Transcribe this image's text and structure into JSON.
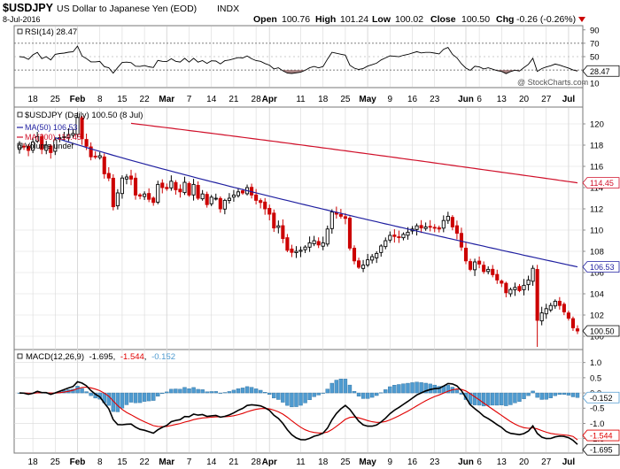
{
  "header": {
    "symbol": "$USDJPY",
    "name": "US Dollar to Japanese Yen (EOD)",
    "exchange": "INDX",
    "date": "8-Jul-2016",
    "open_label": "Open",
    "open": "100.76",
    "high_label": "High",
    "high": "101.24",
    "low_label": "Low",
    "low": "100.02",
    "close_label": "Close",
    "close": "100.50",
    "chg_label": "Chg",
    "chg": "-0.26 (-0.26%)"
  },
  "watermark": "@ StockCharts.com",
  "rsi_panel": {
    "legend": "RSI(14) 28.47",
    "current_label": "28.47",
    "y_ticks": [
      10,
      30,
      50,
      70,
      90
    ],
    "overbought": 70,
    "oversold": 30
  },
  "price_panel": {
    "legend_title": "$USDJPY (Daily) 100.50 (8 Jul)",
    "ma50_legend": "MA(50) 106.53",
    "ma200_legend": "MA(200) 114.45",
    "volume_legend": "Volume undef",
    "ma50_label": "106.53",
    "ma200_label": "114.45",
    "close_label": "100.50",
    "y_ticks": [
      100,
      102,
      104,
      106,
      108,
      110,
      112,
      114,
      116,
      118,
      120
    ],
    "y_range": [
      98.5,
      121.5
    ]
  },
  "macd_panel": {
    "legend_prefix": "MACD(12,26,9)",
    "macd_value": "-1.695",
    "signal_value": "-1.544",
    "hist_value": "-0.152",
    "macd_label": "-1.695",
    "signal_label": "-1.544",
    "hist_label": "-0.152",
    "y_ticks": [
      "1.0",
      "0.5",
      "0.0",
      "-0.5",
      "-1.0",
      "-1.5"
    ],
    "y_tick_values": [
      1.0,
      0.5,
      0.0,
      -0.5,
      -1.0,
      -1.5
    ],
    "y_range": [
      -1.95,
      1.4
    ]
  },
  "x_axis": {
    "labels": [
      {
        "text": "18",
        "idx": 3,
        "bold": false
      },
      {
        "text": "25",
        "idx": 8,
        "bold": false
      },
      {
        "text": "Feb",
        "idx": 13,
        "bold": true
      },
      {
        "text": "8",
        "idx": 18,
        "bold": false
      },
      {
        "text": "15",
        "idx": 23,
        "bold": false
      },
      {
        "text": "22",
        "idx": 28,
        "bold": false
      },
      {
        "text": "Mar",
        "idx": 33,
        "bold": true
      },
      {
        "text": "7",
        "idx": 38,
        "bold": false
      },
      {
        "text": "14",
        "idx": 43,
        "bold": false
      },
      {
        "text": "21",
        "idx": 48,
        "bold": false
      },
      {
        "text": "28",
        "idx": 53,
        "bold": false
      },
      {
        "text": "Apr",
        "idx": 56,
        "bold": true
      },
      {
        "text": "11",
        "idx": 63,
        "bold": false
      },
      {
        "text": "18",
        "idx": 68,
        "bold": false
      },
      {
        "text": "25",
        "idx": 73,
        "bold": false
      },
      {
        "text": "May",
        "idx": 78,
        "bold": true
      },
      {
        "text": "9",
        "idx": 83,
        "bold": false
      },
      {
        "text": "16",
        "idx": 88,
        "bold": false
      },
      {
        "text": "23",
        "idx": 93,
        "bold": false
      },
      {
        "text": "Jun",
        "idx": 100,
        "bold": true
      },
      {
        "text": "6",
        "idx": 103,
        "bold": false
      },
      {
        "text": "13",
        "idx": 108,
        "bold": false
      },
      {
        "text": "20",
        "idx": 113,
        "bold": false
      },
      {
        "text": "27",
        "idx": 118,
        "bold": false
      },
      {
        "text": "Jul",
        "idx": 123,
        "bold": true
      }
    ]
  },
  "colors": {
    "up_candle": "#000000",
    "down_candle": "#cc0000",
    "ma50": "#1f1fa0",
    "ma200": "#d0102a",
    "macd_line": "#000000",
    "signal_line": "#e00000",
    "histogram": "#4f9bd0",
    "grid": "#d9d9d9",
    "rsi_fill": "#8b5a5a",
    "chg_negative": "#cc0000"
  },
  "chart_data": {
    "type": "candlestick",
    "title": "$USDJPY US Dollar to Japanese Yen (EOD) INDX",
    "x_start_label": "18 Jan 2016",
    "x_end_label": "8 Jul 2016",
    "close": [
      118.0,
      117.9,
      117.5,
      118.3,
      118.8,
      117.6,
      118.0,
      117.3,
      118.5,
      118.7,
      118.8,
      119.0,
      119.1,
      120.6,
      118.6,
      117.9,
      116.9,
      116.9,
      117.0,
      115.3,
      114.9,
      112.2,
      113.5,
      114.9,
      115.0,
      114.8,
      113.3,
      113.2,
      113.4,
      112.9,
      112.6,
      114.3,
      114.0,
      113.9,
      114.6,
      113.8,
      113.6,
      114.5,
      113.3,
      114.3,
      113.0,
      113.4,
      112.4,
      113.1,
      113.0,
      112.0,
      112.8,
      113.0,
      113.3,
      113.6,
      113.5,
      114.0,
      113.3,
      112.8,
      112.6,
      112.0,
      111.5,
      110.2,
      110.4,
      109.2,
      108.1,
      107.9,
      108.0,
      108.1,
      108.4,
      108.8,
      109.0,
      108.6,
      108.8,
      110.1,
      111.7,
      111.5,
      111.3,
      111.1,
      108.3,
      107.1,
      106.5,
      106.7,
      107.2,
      107.5,
      107.8,
      108.5,
      109.0,
      109.5,
      109.4,
      109.3,
      109.6,
      109.8,
      110.1,
      110.4,
      110.2,
      110.3,
      110.3,
      110.2,
      110.1,
      110.9,
      111.3,
      110.3,
      109.7,
      108.4,
      107.1,
      106.3,
      107.0,
      106.8,
      106.1,
      106.3,
      105.8,
      105.3,
      105.0,
      104.1,
      104.4,
      104.6,
      104.3,
      104.8,
      105.3,
      106.4,
      101.5,
      102.2,
      102.6,
      102.9,
      103.3,
      102.9,
      102.3,
      101.7,
      100.8,
      100.5
    ]
  }
}
